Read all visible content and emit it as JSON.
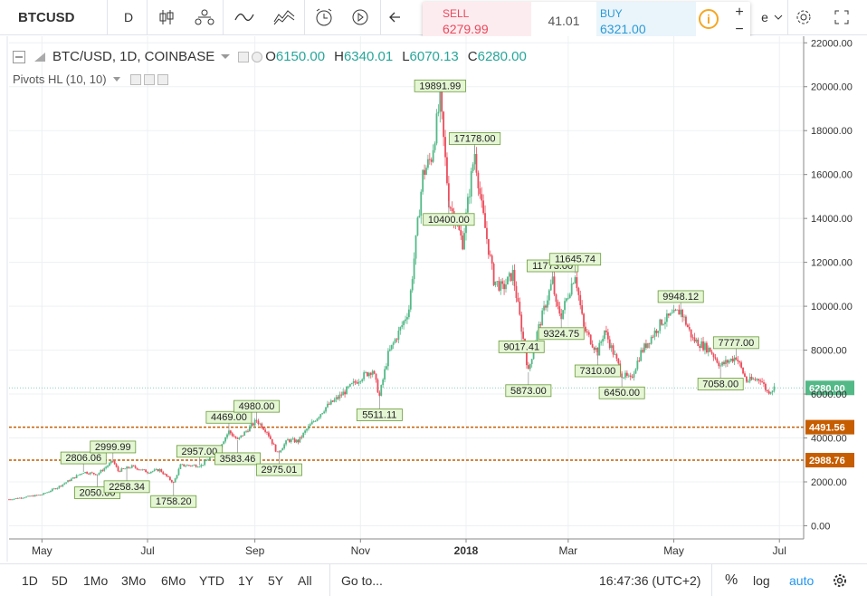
{
  "toolbar": {
    "symbol": "BTCUSD",
    "interval": "D",
    "trade": {
      "sell_label": "SELL",
      "sell_value": "6279.99",
      "spread": "41.01",
      "buy_label": "BUY",
      "buy_value": "6321.00",
      "info": "i"
    },
    "zoom_plus": "+",
    "zoom_minus": "−",
    "more_label": "e"
  },
  "legend": {
    "title": "BTC/USD, 1D, COINBASE",
    "o_label": "O",
    "o": "6150.00",
    "h_label": "H",
    "h": "6340.01",
    "l_label": "L",
    "l": "6070.13",
    "c_label": "C",
    "c": "6280.00",
    "indicator": "Pivots HL (10, 10)"
  },
  "bottom": {
    "ranges": [
      "1D",
      "5D",
      "1Mo",
      "3Mo",
      "6Mo",
      "YTD",
      "1Y",
      "5Y",
      "All"
    ],
    "goto": "Go to...",
    "time": "16:47:36 (UTC+2)",
    "percent": "%",
    "log": "log",
    "auto": "auto"
  },
  "colors": {
    "up": "#53b987",
    "down": "#eb4d5c",
    "level": "#c65d00",
    "accent": "#2196f3"
  },
  "chart_data": {
    "type": "candlestick",
    "title": "BTC/USD, 1D, COINBASE",
    "ylim": [
      -600,
      22300
    ],
    "y_ticks": [
      0,
      2000,
      4000,
      6000,
      8000,
      10000,
      12000,
      14000,
      16000,
      18000,
      20000,
      22000
    ],
    "y_tick_labels": [
      "0.00",
      "2000.00",
      "4000.00",
      "6000.00",
      "8000.00",
      "10000.00",
      "12000.00",
      "14000.00",
      "16000.00",
      "18000.00",
      "20000.00",
      "22000.00"
    ],
    "x_labels": [
      {
        "label": "May",
        "date": "2017-05-01"
      },
      {
        "label": "Jul",
        "date": "2017-07-01"
      },
      {
        "label": "Sep",
        "date": "2017-09-01"
      },
      {
        "label": "Nov",
        "date": "2017-11-01"
      },
      {
        "label": "2018",
        "date": "2018-01-01"
      },
      {
        "label": "Mar",
        "date": "2018-03-01"
      },
      {
        "label": "May",
        "date": "2018-05-01"
      },
      {
        "label": "Jul",
        "date": "2018-07-01"
      }
    ],
    "x_range": [
      "2017-04-12",
      "2018-07-15"
    ],
    "price_path": [
      [
        "2017-04-12",
        1200
      ],
      [
        "2017-05-01",
        1420
      ],
      [
        "2017-05-10",
        1750
      ],
      [
        "2017-05-25",
        2450
      ],
      [
        "2017-06-02",
        2350
      ],
      [
        "2017-06-11",
        2950
      ],
      [
        "2017-06-14",
        2500
      ],
      [
        "2017-06-22",
        2700
      ],
      [
        "2017-07-01",
        2450
      ],
      [
        "2017-07-08",
        2550
      ],
      [
        "2017-07-16",
        1950
      ],
      [
        "2017-07-20",
        2750
      ],
      [
        "2017-08-01",
        2750
      ],
      [
        "2017-08-10",
        3400
      ],
      [
        "2017-08-17",
        4300
      ],
      [
        "2017-08-22",
        3900
      ],
      [
        "2017-08-28",
        4400
      ],
      [
        "2017-09-02",
        4800
      ],
      [
        "2017-09-08",
        4300
      ],
      [
        "2017-09-14",
        3300
      ],
      [
        "2017-09-20",
        3900
      ],
      [
        "2017-09-26",
        3850
      ],
      [
        "2017-10-01",
        4400
      ],
      [
        "2017-10-12",
        5400
      ],
      [
        "2017-10-20",
        5900
      ],
      [
        "2017-11-01",
        6750
      ],
      [
        "2017-11-08",
        7100
      ],
      [
        "2017-11-12",
        5900
      ],
      [
        "2017-11-17",
        7800
      ],
      [
        "2017-11-26",
        9300
      ],
      [
        "2017-11-29",
        9900
      ],
      [
        "2017-12-07",
        16000
      ],
      [
        "2017-12-12",
        16800
      ],
      [
        "2017-12-17",
        19400
      ],
      [
        "2017-12-22",
        14800
      ],
      [
        "2017-12-30",
        12900
      ],
      [
        "2018-01-05",
        16500
      ],
      [
        "2018-01-06",
        17000
      ],
      [
        "2018-01-10",
        14500
      ],
      [
        "2018-01-17",
        11200
      ],
      [
        "2018-01-22",
        10800
      ],
      [
        "2018-01-28",
        11500
      ],
      [
        "2018-02-02",
        9000
      ],
      [
        "2018-02-06",
        7000
      ],
      [
        "2018-02-10",
        8500
      ],
      [
        "2018-02-20",
        11200
      ],
      [
        "2018-02-22",
        10000
      ],
      [
        "2018-02-25",
        9600
      ],
      [
        "2018-03-05",
        11500
      ],
      [
        "2018-03-10",
        9000
      ],
      [
        "2018-03-18",
        7900
      ],
      [
        "2018-03-22",
        8900
      ],
      [
        "2018-04-01",
        6900
      ],
      [
        "2018-04-06",
        6650
      ],
      [
        "2018-04-12",
        7900
      ],
      [
        "2018-04-24",
        9300
      ],
      [
        "2018-05-05",
        9800
      ],
      [
        "2018-05-12",
        8500
      ],
      [
        "2018-05-22",
        8000
      ],
      [
        "2018-05-28",
        7300
      ],
      [
        "2018-06-06",
        7700
      ],
      [
        "2018-06-12",
        6600
      ],
      [
        "2018-06-20",
        6700
      ],
      [
        "2018-06-24",
        6100
      ],
      [
        "2018-06-28",
        6280
      ]
    ],
    "pivots": [
      {
        "date": "2017-05-25",
        "label": "2806.06",
        "pos": "high"
      },
      {
        "date": "2017-06-02",
        "label": "2050.00",
        "pos": "low"
      },
      {
        "date": "2017-06-11",
        "label": "2999.99",
        "pos": "high"
      },
      {
        "date": "2017-06-19",
        "label": "2258.34",
        "pos": "low"
      },
      {
        "date": "2017-07-16",
        "label": "1758.20",
        "pos": "low"
      },
      {
        "date": "2017-07-31",
        "label": "2957.00",
        "pos": "high"
      },
      {
        "date": "2017-08-17",
        "label": "4469.00",
        "pos": "high"
      },
      {
        "date": "2017-08-22",
        "label": "3583.46",
        "pos": "low"
      },
      {
        "date": "2017-09-02",
        "label": "4980.00",
        "pos": "high"
      },
      {
        "date": "2017-09-15",
        "label": "2975.01",
        "pos": "low"
      },
      {
        "date": "2017-11-12",
        "label": "5511.11",
        "pos": "low"
      },
      {
        "date": "2017-12-17",
        "label": "19891.99",
        "pos": "high"
      },
      {
        "date": "2017-12-22",
        "label": "10400.00",
        "pos": "low"
      },
      {
        "date": "2018-01-06",
        "label": "17178.00",
        "pos": "high"
      },
      {
        "date": "2018-02-02",
        "label": "9017.41",
        "pos": "low"
      },
      {
        "date": "2018-02-06",
        "label": "5873.00",
        "pos": "low"
      },
      {
        "date": "2018-02-20",
        "label": "11773.00",
        "pos": "high"
      },
      {
        "date": "2018-02-25",
        "label": "9324.75",
        "pos": "low"
      },
      {
        "date": "2018-03-05",
        "label": "11645.74",
        "pos": "high"
      },
      {
        "date": "2018-03-18",
        "label": "7310.00",
        "pos": "low"
      },
      {
        "date": "2018-04-01",
        "label": "6450.00",
        "pos": "low"
      },
      {
        "date": "2018-05-05",
        "label": "9948.12",
        "pos": "high"
      },
      {
        "date": "2018-05-28",
        "label": "7058.00",
        "pos": "low"
      },
      {
        "date": "2018-06-06",
        "label": "7777.00",
        "pos": "high"
      }
    ],
    "levels": [
      {
        "label": "4491.56",
        "value": 4491.56
      },
      {
        "label": "2988.76",
        "value": 2988.76
      }
    ],
    "last_price": {
      "label": "6280.00",
      "value": 6280
    }
  }
}
